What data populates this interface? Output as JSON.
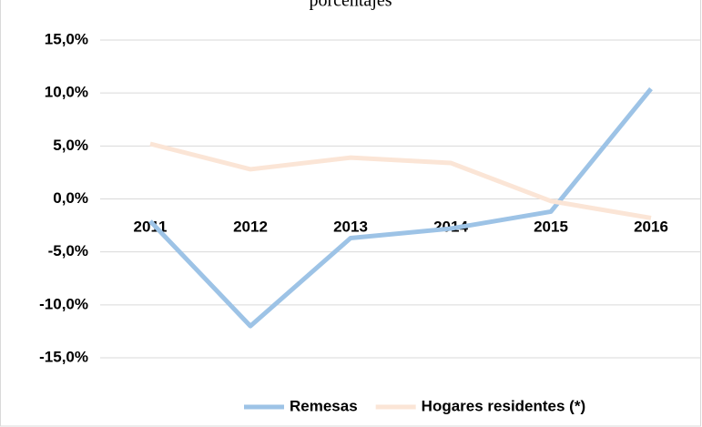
{
  "chart_data": {
    "type": "line",
    "title": "porcentajes",
    "categories": [
      "2011",
      "2012",
      "2013",
      "2014",
      "2015",
      "2016"
    ],
    "series": [
      {
        "name": "Remesas",
        "color": "#9dc3e6",
        "values": [
          -2.1,
          -12.0,
          -3.7,
          -2.8,
          -1.2,
          10.4
        ]
      },
      {
        "name": "Hogares residentes (*)",
        "color": "#fbe5d6",
        "values": [
          5.2,
          2.8,
          3.9,
          3.4,
          -0.2,
          -1.8
        ]
      }
    ],
    "ylim": [
      -15,
      15
    ],
    "yticks": [
      {
        "value": 15,
        "label": "15,0%"
      },
      {
        "value": 10,
        "label": "10,0%"
      },
      {
        "value": 5,
        "label": "5,0%"
      },
      {
        "value": 0,
        "label": "0,0%"
      },
      {
        "value": -5,
        "label": "-5,0%"
      },
      {
        "value": -10,
        "label": "-10,0%"
      },
      {
        "value": -15,
        "label": "-15,0%"
      }
    ],
    "grid": true,
    "legend": "bottom"
  }
}
